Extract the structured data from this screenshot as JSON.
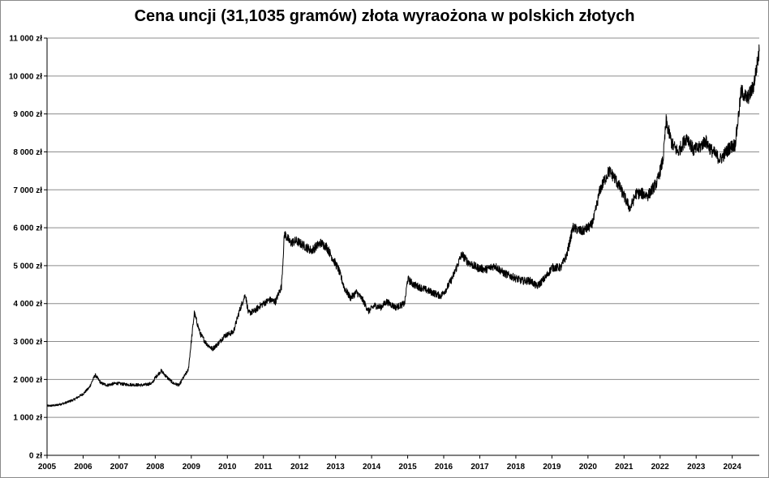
{
  "chart_data": {
    "type": "line",
    "title": "Cena uncji (31,1035 gramów) złota wyraożona w polskich złotych",
    "xlabel": "",
    "ylabel": "",
    "x_range": [
      "2005",
      "2024-10"
    ],
    "ylim": [
      0,
      11000
    ],
    "grid": "horizontal",
    "legend": "none",
    "x_tick_labels": [
      "2005",
      "2006",
      "2007",
      "2008",
      "2009",
      "2010",
      "2011",
      "2012",
      "2013",
      "2014",
      "2015",
      "2016",
      "2017",
      "2018",
      "2019",
      "2020",
      "2021",
      "2022",
      "2023",
      "2024"
    ],
    "y_tick_labels": [
      "0 zł",
      "1 000 zł",
      "2 000 zł",
      "3 000 zł",
      "4 000 zł",
      "5 000 zł",
      "6 000 zł",
      "7 000 zł",
      "8 000 zł",
      "9 000 zł",
      "10 000 zł",
      "11 000 zł"
    ],
    "series": [
      {
        "color": "#000000",
        "points": [
          [
            "2005-01",
            1300
          ],
          [
            "2005-04",
            1320
          ],
          [
            "2005-07",
            1380
          ],
          [
            "2005-10",
            1470
          ],
          [
            "2006-01",
            1620
          ],
          [
            "2006-03",
            1780
          ],
          [
            "2006-05",
            2120
          ],
          [
            "2006-07",
            1900
          ],
          [
            "2006-09",
            1850
          ],
          [
            "2006-12",
            1900
          ],
          [
            "2007-03",
            1870
          ],
          [
            "2007-06",
            1860
          ],
          [
            "2007-09",
            1850
          ],
          [
            "2007-12",
            1900
          ],
          [
            "2008-01",
            2050
          ],
          [
            "2008-03",
            2230
          ],
          [
            "2008-05",
            2050
          ],
          [
            "2008-07",
            1900
          ],
          [
            "2008-09",
            1850
          ],
          [
            "2008-10",
            2000
          ],
          [
            "2008-12",
            2250
          ],
          [
            "2009-02",
            3750
          ],
          [
            "2009-04",
            3200
          ],
          [
            "2009-06",
            2950
          ],
          [
            "2009-08",
            2800
          ],
          [
            "2009-10",
            2950
          ],
          [
            "2009-12",
            3150
          ],
          [
            "2010-03",
            3250
          ],
          [
            "2010-05",
            3800
          ],
          [
            "2010-07",
            4250
          ],
          [
            "2010-08",
            3750
          ],
          [
            "2010-10",
            3800
          ],
          [
            "2010-12",
            3950
          ],
          [
            "2011-03",
            4100
          ],
          [
            "2011-05",
            4050
          ],
          [
            "2011-07",
            4450
          ],
          [
            "2011-08",
            5850
          ],
          [
            "2011-10",
            5600
          ],
          [
            "2011-12",
            5650
          ],
          [
            "2012-03",
            5500
          ],
          [
            "2012-05",
            5400
          ],
          [
            "2012-08",
            5600
          ],
          [
            "2012-10",
            5500
          ],
          [
            "2012-12",
            5200
          ],
          [
            "2013-02",
            4900
          ],
          [
            "2013-04",
            4400
          ],
          [
            "2013-06",
            4150
          ],
          [
            "2013-08",
            4300
          ],
          [
            "2013-10",
            4100
          ],
          [
            "2013-12",
            3800
          ],
          [
            "2014-02",
            3950
          ],
          [
            "2014-04",
            3900
          ],
          [
            "2014-06",
            4050
          ],
          [
            "2014-09",
            3900
          ],
          [
            "2014-12",
            4000
          ],
          [
            "2015-01",
            4650
          ],
          [
            "2015-03",
            4500
          ],
          [
            "2015-06",
            4400
          ],
          [
            "2015-09",
            4300
          ],
          [
            "2015-12",
            4200
          ],
          [
            "2016-02",
            4400
          ],
          [
            "2016-04",
            4700
          ],
          [
            "2016-07",
            5300
          ],
          [
            "2016-09",
            5100
          ],
          [
            "2016-12",
            4950
          ],
          [
            "2017-03",
            4900
          ],
          [
            "2017-06",
            5000
          ],
          [
            "2017-09",
            4800
          ],
          [
            "2017-12",
            4700
          ],
          [
            "2018-03",
            4600
          ],
          [
            "2018-06",
            4600
          ],
          [
            "2018-08",
            4450
          ],
          [
            "2018-11",
            4700
          ],
          [
            "2019-01",
            4950
          ],
          [
            "2019-04",
            4950
          ],
          [
            "2019-06",
            5300
          ],
          [
            "2019-08",
            6000
          ],
          [
            "2019-11",
            5900
          ],
          [
            "2020-02",
            6050
          ],
          [
            "2020-03",
            6250
          ],
          [
            "2020-05",
            7000
          ],
          [
            "2020-08",
            7500
          ],
          [
            "2020-10",
            7300
          ],
          [
            "2020-12",
            7000
          ],
          [
            "2021-03",
            6500
          ],
          [
            "2021-05",
            6900
          ],
          [
            "2021-07",
            6900
          ],
          [
            "2021-09",
            6850
          ],
          [
            "2021-12",
            7200
          ],
          [
            "2022-02",
            7800
          ],
          [
            "2022-03",
            8800
          ],
          [
            "2022-05",
            8200
          ],
          [
            "2022-07",
            8000
          ],
          [
            "2022-10",
            8400
          ],
          [
            "2022-12",
            8050
          ],
          [
            "2023-02",
            8100
          ],
          [
            "2023-04",
            8300
          ],
          [
            "2023-06",
            8050
          ],
          [
            "2023-09",
            7800
          ],
          [
            "2023-12",
            8100
          ],
          [
            "2024-02",
            8200
          ],
          [
            "2024-03",
            8900
          ],
          [
            "2024-04",
            9600
          ],
          [
            "2024-06",
            9400
          ],
          [
            "2024-08",
            9700
          ],
          [
            "2024-10",
            10650
          ]
        ]
      }
    ]
  }
}
